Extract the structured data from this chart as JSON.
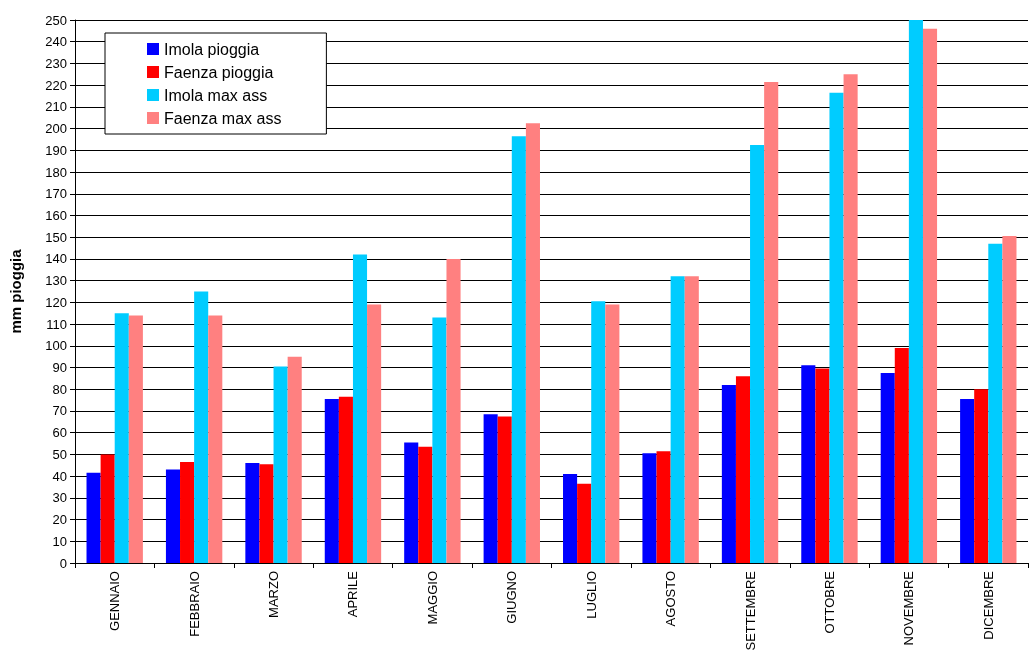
{
  "chart_data": {
    "type": "bar",
    "ylabel": "mm pioggia",
    "categories": [
      "GENNAIO",
      "FEBBRAIO",
      "MARZO",
      "APRILE",
      "MAGGIO",
      "GIUGNO",
      "LUGLIO",
      "AGOSTO",
      "SETTEMBRE",
      "OTTOBRE",
      "NOVEMBRE",
      "DICEMBRE"
    ],
    "series": [
      {
        "name": "Imola pioggia",
        "color": "#0000ff",
        "values": [
          41.5,
          43,
          46,
          75.5,
          55.5,
          68.5,
          41,
          50.5,
          82,
          91,
          87.5,
          75.5
        ]
      },
      {
        "name": "Faenza pioggia",
        "color": "#ff0000",
        "values": [
          50,
          46.5,
          45.5,
          76.5,
          53.5,
          67.5,
          36.5,
          51.5,
          86,
          89.5,
          99,
          80
        ]
      },
      {
        "name": "Imola max ass",
        "color": "#00ccff",
        "values": [
          115,
          125,
          90.5,
          142,
          113,
          196.5,
          120.5,
          132,
          192.5,
          216.5,
          250,
          147
        ]
      },
      {
        "name": "Faenza max ass",
        "color": "#ff8080",
        "values": [
          114,
          114,
          95,
          119,
          140,
          202.5,
          119,
          132,
          221.5,
          225,
          246,
          150.5
        ]
      }
    ],
    "ylim": [
      0,
      250
    ],
    "yticks": [
      0,
      10,
      20,
      30,
      40,
      50,
      60,
      70,
      80,
      90,
      100,
      110,
      120,
      130,
      140,
      150,
      160,
      170,
      180,
      190,
      200,
      210,
      220,
      230,
      240,
      250
    ],
    "grid": "y",
    "legend": "top left"
  }
}
